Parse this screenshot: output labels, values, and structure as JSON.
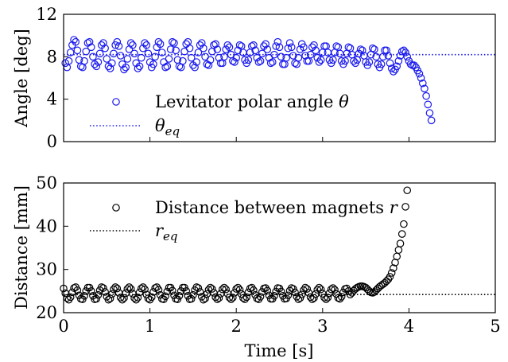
{
  "chart_data": [
    {
      "type": "scatter",
      "panel": "top",
      "xlabel": "",
      "ylabel": "Angle [deg]",
      "xlim": [
        0,
        5
      ],
      "ylim": [
        0,
        12
      ],
      "xticks": [
        "0",
        "1",
        "2",
        "3",
        "4",
        "5"
      ],
      "yticks": [
        "0",
        "4",
        "8",
        "12"
      ],
      "show_x_tick_labels": false,
      "legend_position": "bottom-left",
      "colors": {
        "series": "#1a1aee",
        "reference": "#1a1aee"
      },
      "series": [
        {
          "name_text": "Levitator polar angle",
          "name_symbol": "θ",
          "marker": "open-circle",
          "x_start": 0.02,
          "x_step": 0.02,
          "values": [
            7.4,
            7.0,
            7.6,
            8.4,
            9.1,
            9.6,
            9.4,
            8.6,
            7.7,
            7.1,
            7.0,
            7.6,
            8.5,
            9.3,
            9.4,
            8.9,
            8.0,
            7.3,
            7.1,
            7.5,
            8.3,
            9.1,
            9.3,
            8.8,
            7.8,
            7.1,
            6.9,
            7.4,
            8.3,
            9.1,
            9.4,
            9.0,
            8.1,
            7.3,
            6.8,
            7.0,
            7.8,
            8.7,
            9.3,
            9.1,
            8.3,
            7.4,
            6.9,
            7.1,
            7.9,
            8.8,
            9.3,
            9.1,
            8.3,
            7.5,
            7.0,
            7.3,
            8.0,
            8.9,
            9.4,
            9.2,
            8.4,
            7.5,
            7.0,
            7.1,
            7.8,
            8.7,
            9.4,
            9.3,
            8.6,
            7.7,
            7.1,
            7.0,
            7.6,
            8.5,
            9.2,
            9.4,
            8.8,
            7.9,
            7.2,
            7.0,
            7.5,
            8.4,
            9.1,
            9.3,
            8.8,
            8.0,
            7.3,
            7.2,
            7.7,
            8.5,
            9.1,
            9.2,
            8.7,
            7.9,
            7.4,
            7.4,
            8.0,
            8.7,
            9.1,
            8.9,
            8.2,
            7.6,
            7.5,
            7.9,
            8.6,
            9.1,
            9.0,
            8.4,
            7.7,
            7.4,
            7.7,
            8.4,
            9.0,
            9.1,
            8.6,
            7.9,
            7.5,
            7.6,
            8.3,
            9.0,
            9.2,
            8.7,
            7.9,
            7.4,
            7.5,
            8.2,
            9.0,
            9.4,
            8.9,
            8.0,
            7.3,
            7.3,
            7.9,
            8.8,
            9.3,
            8.9,
            8.1,
            7.4,
            7.3,
            7.9,
            8.7,
            9.2,
            8.9,
            8.1,
            7.6,
            7.6,
            8.2,
            8.9,
            9.1,
            8.6,
            7.9,
            7.5,
            7.7,
            8.4,
            9.0,
            9.0,
            8.4,
            7.7,
            7.4,
            7.7,
            8.4,
            9.0,
            8.9,
            8.3,
            7.6,
            7.3,
            7.6,
            8.3,
            8.9,
            8.8,
            8.2,
            7.6,
            7.4,
            7.7,
            8.3,
            8.7,
            8.6,
            8.1,
            7.5,
            7.2,
            7.5,
            8.2,
            8.8,
            8.7,
            8.0,
            7.3,
            7.0,
            7.3,
            8.0,
            8.6,
            8.6,
            8.1,
            7.4,
            6.9,
            6.6,
            6.8,
            7.1,
            7.6,
            8.1,
            8.5,
            8.6,
            8.4,
            8.0,
            7.6,
            7.3,
            7.2,
            7.2,
            7.0,
            6.7,
            6.4,
            6.0,
            5.5,
            5.0,
            4.3,
            3.5,
            2.7,
            2.0
          ]
        }
      ],
      "reference_line": {
        "name_symbol": "θ",
        "name_subscript": "eq",
        "y": 8.2,
        "style": "dotted"
      }
    },
    {
      "type": "scatter",
      "panel": "bottom",
      "xlabel": "Time [s]",
      "ylabel": "Distance [mm]",
      "xlim": [
        0,
        5
      ],
      "ylim": [
        20,
        50
      ],
      "xticks": [
        "0",
        "1",
        "2",
        "3",
        "4",
        "5"
      ],
      "yticks": [
        "20",
        "30",
        "40",
        "50"
      ],
      "legend_position": "top-left",
      "colors": {
        "series": "#000000",
        "reference": "#000000"
      },
      "series": [
        {
          "name_text": "Distance between magnets",
          "name_symbol": "r",
          "marker": "open-circle",
          "x_start": 0.0,
          "x_step": 0.02,
          "values": [
            25.6,
            24.5,
            23.4,
            23.0,
            23.6,
            24.7,
            25.7,
            25.9,
            25.2,
            24.0,
            23.2,
            23.1,
            23.9,
            25.0,
            25.8,
            25.8,
            25.0,
            23.9,
            23.1,
            23.2,
            24.1,
            25.2,
            25.9,
            25.7,
            24.8,
            23.7,
            23.0,
            23.3,
            24.3,
            25.4,
            25.9,
            25.6,
            24.6,
            23.5,
            23.0,
            23.4,
            24.5,
            25.5,
            25.9,
            25.5,
            24.4,
            23.4,
            23.0,
            23.5,
            24.7,
            25.6,
            25.9,
            25.4,
            24.2,
            23.3,
            23.0,
            23.6,
            24.8,
            25.7,
            25.9,
            25.3,
            24.1,
            23.2,
            23.1,
            23.8,
            24.9,
            25.8,
            25.8,
            25.1,
            24.0,
            23.2,
            23.1,
            23.9,
            25.0,
            25.8,
            25.8,
            25.0,
            23.9,
            23.1,
            23.2,
            24.1,
            25.2,
            25.9,
            25.7,
            24.8,
            23.7,
            23.0,
            23.3,
            24.3,
            25.3,
            25.8,
            25.5,
            24.6,
            23.6,
            23.1,
            23.4,
            24.4,
            25.4,
            25.8,
            25.4,
            24.4,
            23.5,
            23.1,
            23.5,
            24.6,
            25.5,
            25.8,
            25.3,
            24.3,
            23.4,
            23.1,
            23.6,
            24.7,
            25.6,
            25.8,
            25.2,
            24.1,
            23.3,
            23.1,
            23.7,
            24.8,
            25.6,
            25.7,
            25.1,
            24.0,
            23.2,
            23.2,
            23.9,
            24.9,
            25.7,
            25.6,
            24.9,
            23.9,
            23.2,
            23.3,
            24.0,
            25.1,
            25.7,
            25.5,
            24.7,
            23.7,
            23.1,
            23.4,
            24.2,
            25.2,
            25.8,
            25.5,
            24.6,
            23.6,
            23.1,
            23.4,
            24.3,
            25.3,
            25.8,
            25.4,
            24.4,
            23.5,
            23.1,
            23.5,
            24.5,
            25.4,
            25.7,
            25.3,
            24.3,
            23.4,
            23.2,
            23.7,
            24.7,
            25.5,
            25.6,
            25.0,
            24.2,
            24.6,
            25.1,
            25.5,
            25.8,
            26.0,
            26.1,
            26.1,
            26.0,
            25.8,
            25.4,
            25.0,
            24.7,
            24.6,
            24.8,
            25.2,
            25.6,
            26.0,
            26.3,
            26.6,
            26.9,
            27.3,
            27.7,
            28.3,
            29.2,
            30.3,
            31.6,
            33.0,
            34.5,
            36.0,
            38.2,
            40.5,
            44.5,
            48.3
          ]
        }
      ],
      "reference_line": {
        "name_symbol": "r",
        "name_subscript": "eq",
        "y": 24.2,
        "style": "dotted"
      }
    }
  ]
}
